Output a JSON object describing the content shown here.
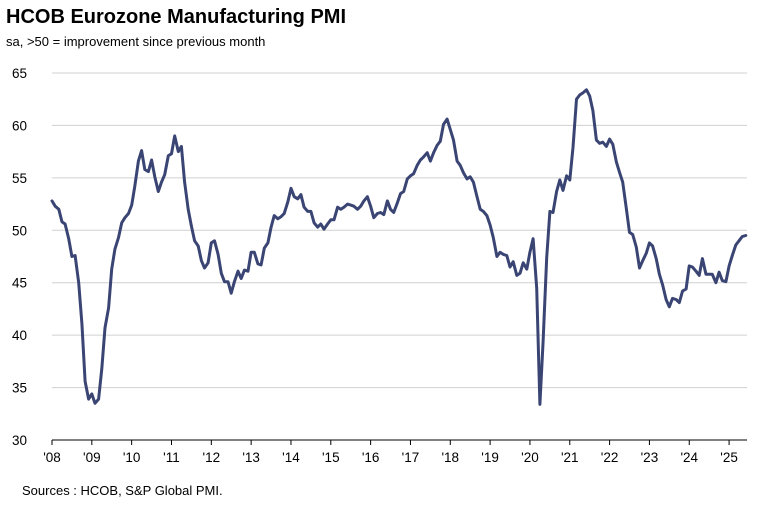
{
  "chart_data": {
    "type": "line",
    "title": "HCOB Eurozone Manufacturing PMI",
    "subtitle": "sa, >50 = improvement  since previous month",
    "source": "Sources : HCOB, S&P Global PMI.",
    "xlabel": "",
    "ylabel": "",
    "ylim": [
      30,
      65
    ],
    "yticks": [
      "30",
      "35",
      "40",
      "45",
      "50",
      "55",
      "60",
      "65"
    ],
    "xlim": [
      2008,
      2025.45
    ],
    "xticks": [
      "'08",
      "'09",
      "'10",
      "'11",
      "'12",
      "'13",
      "'14",
      "'15",
      "'16",
      "'17",
      "'18",
      "'19",
      "'20",
      "'21",
      "'22",
      "'23",
      "'24",
      "'25"
    ],
    "grid": "horizontal",
    "line_color": "#3a4574",
    "series": [
      {
        "name": "",
        "points": [
          [
            2008.0,
            52.8
          ],
          [
            2008.08,
            52.3
          ],
          [
            2008.17,
            52.0
          ],
          [
            2008.25,
            50.8
          ],
          [
            2008.33,
            50.6
          ],
          [
            2008.42,
            49.2
          ],
          [
            2008.5,
            47.5
          ],
          [
            2008.58,
            47.6
          ],
          [
            2008.67,
            45.0
          ],
          [
            2008.75,
            41.1
          ],
          [
            2008.83,
            35.6
          ],
          [
            2008.92,
            33.9
          ],
          [
            2009.0,
            34.4
          ],
          [
            2009.08,
            33.5
          ],
          [
            2009.17,
            33.9
          ],
          [
            2009.25,
            36.8
          ],
          [
            2009.33,
            40.7
          ],
          [
            2009.42,
            42.6
          ],
          [
            2009.5,
            46.3
          ],
          [
            2009.58,
            48.2
          ],
          [
            2009.67,
            49.3
          ],
          [
            2009.75,
            50.7
          ],
          [
            2009.83,
            51.2
          ],
          [
            2009.92,
            51.6
          ],
          [
            2010.0,
            52.4
          ],
          [
            2010.08,
            54.2
          ],
          [
            2010.17,
            56.6
          ],
          [
            2010.25,
            57.6
          ],
          [
            2010.33,
            55.8
          ],
          [
            2010.42,
            55.6
          ],
          [
            2010.5,
            56.7
          ],
          [
            2010.58,
            55.1
          ],
          [
            2010.67,
            53.7
          ],
          [
            2010.75,
            54.6
          ],
          [
            2010.83,
            55.3
          ],
          [
            2010.92,
            57.1
          ],
          [
            2011.0,
            57.3
          ],
          [
            2011.08,
            59.0
          ],
          [
            2011.17,
            57.5
          ],
          [
            2011.25,
            58.0
          ],
          [
            2011.33,
            54.6
          ],
          [
            2011.42,
            52.0
          ],
          [
            2011.5,
            50.4
          ],
          [
            2011.58,
            49.0
          ],
          [
            2011.67,
            48.5
          ],
          [
            2011.75,
            47.1
          ],
          [
            2011.83,
            46.4
          ],
          [
            2011.92,
            46.9
          ],
          [
            2012.0,
            48.8
          ],
          [
            2012.08,
            49.0
          ],
          [
            2012.17,
            47.7
          ],
          [
            2012.25,
            45.9
          ],
          [
            2012.33,
            45.1
          ],
          [
            2012.42,
            45.1
          ],
          [
            2012.5,
            44.0
          ],
          [
            2012.58,
            45.1
          ],
          [
            2012.67,
            46.1
          ],
          [
            2012.75,
            45.4
          ],
          [
            2012.83,
            46.2
          ],
          [
            2012.92,
            46.1
          ],
          [
            2013.0,
            47.9
          ],
          [
            2013.08,
            47.9
          ],
          [
            2013.17,
            46.8
          ],
          [
            2013.25,
            46.7
          ],
          [
            2013.33,
            48.3
          ],
          [
            2013.42,
            48.8
          ],
          [
            2013.5,
            50.3
          ],
          [
            2013.58,
            51.4
          ],
          [
            2013.67,
            51.1
          ],
          [
            2013.75,
            51.3
          ],
          [
            2013.83,
            51.6
          ],
          [
            2013.92,
            52.7
          ],
          [
            2014.0,
            54.0
          ],
          [
            2014.08,
            53.2
          ],
          [
            2014.17,
            53.0
          ],
          [
            2014.25,
            53.4
          ],
          [
            2014.33,
            52.2
          ],
          [
            2014.42,
            51.8
          ],
          [
            2014.5,
            51.8
          ],
          [
            2014.58,
            50.7
          ],
          [
            2014.67,
            50.3
          ],
          [
            2014.75,
            50.6
          ],
          [
            2014.83,
            50.1
          ],
          [
            2014.92,
            50.6
          ],
          [
            2015.0,
            51.0
          ],
          [
            2015.08,
            51.0
          ],
          [
            2015.17,
            52.2
          ],
          [
            2015.25,
            52.0
          ],
          [
            2015.33,
            52.2
          ],
          [
            2015.42,
            52.5
          ],
          [
            2015.5,
            52.4
          ],
          [
            2015.58,
            52.3
          ],
          [
            2015.67,
            52.0
          ],
          [
            2015.75,
            52.3
          ],
          [
            2015.83,
            52.8
          ],
          [
            2015.92,
            53.2
          ],
          [
            2016.0,
            52.3
          ],
          [
            2016.08,
            51.2
          ],
          [
            2016.17,
            51.6
          ],
          [
            2016.25,
            51.7
          ],
          [
            2016.33,
            51.5
          ],
          [
            2016.42,
            52.8
          ],
          [
            2016.5,
            52.0
          ],
          [
            2016.58,
            51.7
          ],
          [
            2016.67,
            52.6
          ],
          [
            2016.75,
            53.5
          ],
          [
            2016.83,
            53.7
          ],
          [
            2016.92,
            54.9
          ],
          [
            2017.0,
            55.2
          ],
          [
            2017.08,
            55.4
          ],
          [
            2017.17,
            56.2
          ],
          [
            2017.25,
            56.7
          ],
          [
            2017.33,
            57.0
          ],
          [
            2017.42,
            57.4
          ],
          [
            2017.5,
            56.6
          ],
          [
            2017.58,
            57.4
          ],
          [
            2017.67,
            58.1
          ],
          [
            2017.75,
            58.5
          ],
          [
            2017.83,
            60.1
          ],
          [
            2017.92,
            60.6
          ],
          [
            2018.0,
            59.6
          ],
          [
            2018.08,
            58.6
          ],
          [
            2018.17,
            56.6
          ],
          [
            2018.25,
            56.2
          ],
          [
            2018.33,
            55.5
          ],
          [
            2018.42,
            54.9
          ],
          [
            2018.5,
            55.1
          ],
          [
            2018.58,
            54.6
          ],
          [
            2018.67,
            53.2
          ],
          [
            2018.75,
            52.0
          ],
          [
            2018.83,
            51.8
          ],
          [
            2018.92,
            51.4
          ],
          [
            2019.0,
            50.5
          ],
          [
            2019.08,
            49.3
          ],
          [
            2019.17,
            47.5
          ],
          [
            2019.25,
            47.9
          ],
          [
            2019.33,
            47.7
          ],
          [
            2019.42,
            47.6
          ],
          [
            2019.5,
            46.5
          ],
          [
            2019.58,
            47.0
          ],
          [
            2019.67,
            45.7
          ],
          [
            2019.75,
            45.9
          ],
          [
            2019.83,
            46.9
          ],
          [
            2019.92,
            46.3
          ],
          [
            2020.0,
            47.9
          ],
          [
            2020.08,
            49.2
          ],
          [
            2020.17,
            44.5
          ],
          [
            2020.25,
            33.4
          ],
          [
            2020.33,
            39.4
          ],
          [
            2020.42,
            47.4
          ],
          [
            2020.5,
            51.8
          ],
          [
            2020.58,
            51.7
          ],
          [
            2020.67,
            53.7
          ],
          [
            2020.75,
            54.8
          ],
          [
            2020.83,
            53.8
          ],
          [
            2020.92,
            55.2
          ],
          [
            2021.0,
            54.8
          ],
          [
            2021.08,
            57.9
          ],
          [
            2021.17,
            62.5
          ],
          [
            2021.25,
            62.9
          ],
          [
            2021.33,
            63.1
          ],
          [
            2021.42,
            63.4
          ],
          [
            2021.5,
            62.8
          ],
          [
            2021.58,
            61.4
          ],
          [
            2021.67,
            58.6
          ],
          [
            2021.75,
            58.3
          ],
          [
            2021.83,
            58.4
          ],
          [
            2021.92,
            58.0
          ],
          [
            2022.0,
            58.7
          ],
          [
            2022.08,
            58.2
          ],
          [
            2022.17,
            56.5
          ],
          [
            2022.25,
            55.5
          ],
          [
            2022.33,
            54.6
          ],
          [
            2022.42,
            52.1
          ],
          [
            2022.5,
            49.8
          ],
          [
            2022.58,
            49.6
          ],
          [
            2022.67,
            48.4
          ],
          [
            2022.75,
            46.4
          ],
          [
            2022.83,
            47.1
          ],
          [
            2022.92,
            47.8
          ],
          [
            2023.0,
            48.8
          ],
          [
            2023.08,
            48.5
          ],
          [
            2023.17,
            47.3
          ],
          [
            2023.25,
            45.8
          ],
          [
            2023.33,
            44.8
          ],
          [
            2023.42,
            43.4
          ],
          [
            2023.5,
            42.7
          ],
          [
            2023.58,
            43.5
          ],
          [
            2023.67,
            43.4
          ],
          [
            2023.75,
            43.1
          ],
          [
            2023.83,
            44.2
          ],
          [
            2023.92,
            44.4
          ],
          [
            2024.0,
            46.6
          ],
          [
            2024.08,
            46.5
          ],
          [
            2024.17,
            46.1
          ],
          [
            2024.25,
            45.7
          ],
          [
            2024.33,
            47.3
          ],
          [
            2024.42,
            45.8
          ],
          [
            2024.5,
            45.8
          ],
          [
            2024.58,
            45.8
          ],
          [
            2024.67,
            45.0
          ],
          [
            2024.75,
            46.0
          ],
          [
            2024.83,
            45.2
          ],
          [
            2024.92,
            45.1
          ],
          [
            2025.0,
            46.6
          ],
          [
            2025.08,
            47.6
          ],
          [
            2025.17,
            48.6
          ],
          [
            2025.25,
            49.0
          ],
          [
            2025.33,
            49.4
          ],
          [
            2025.42,
            49.5
          ]
        ]
      }
    ]
  }
}
